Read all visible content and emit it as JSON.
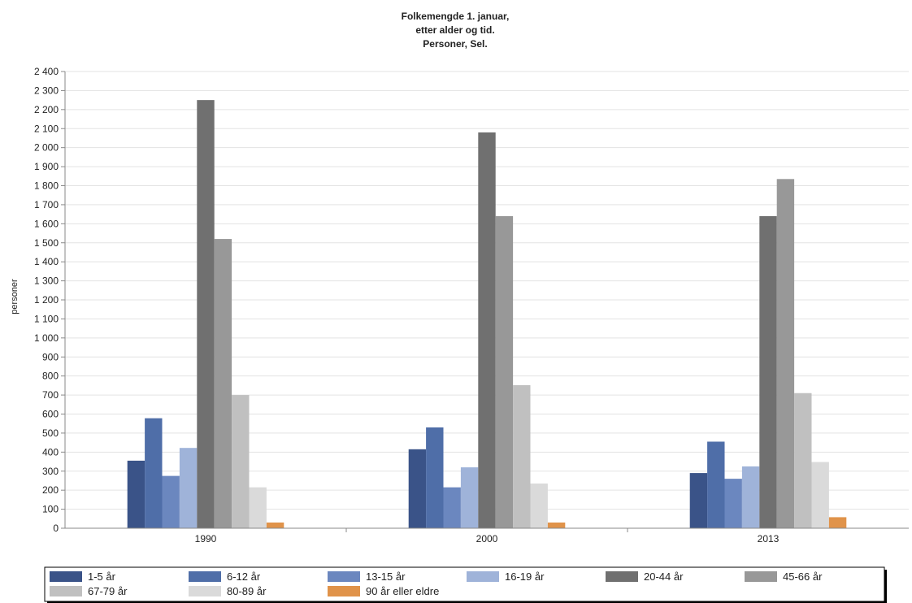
{
  "chart_data": {
    "type": "bar",
    "title": [
      "Folkemengde 1. januar,",
      "etter alder og tid.",
      "Personer, Sel."
    ],
    "ylabel": "personer",
    "xlabel": "",
    "ylim": [
      0,
      2400
    ],
    "ytick_step": 100,
    "ytick_labels": [
      "0",
      "100",
      "200",
      "300",
      "400",
      "500",
      "600",
      "700",
      "800",
      "900",
      "1 000",
      "1 100",
      "1 200",
      "1 300",
      "1 400",
      "1 500",
      "1 600",
      "1 700",
      "1 800",
      "1 900",
      "2 000",
      "2 100",
      "2 200",
      "2 300",
      "2 400"
    ],
    "grid": true,
    "legend_position": "bottom",
    "categories": [
      "1990",
      "2000",
      "2013"
    ],
    "series": [
      {
        "name": "1-5 år",
        "color": "#3a5388",
        "values": [
          355,
          415,
          290
        ]
      },
      {
        "name": "6-12 år",
        "color": "#4f6ea8",
        "values": [
          578,
          530,
          455
        ]
      },
      {
        "name": "13-15 år",
        "color": "#6b87bf",
        "values": [
          275,
          215,
          260
        ]
      },
      {
        "name": "16-19 år",
        "color": "#9fb3d9",
        "values": [
          422,
          320,
          325
        ]
      },
      {
        "name": "20-44 år",
        "color": "#707070",
        "values": [
          2250,
          2080,
          1640
        ]
      },
      {
        "name": "45-66 år",
        "color": "#989898",
        "values": [
          1520,
          1640,
          1835
        ]
      },
      {
        "name": "67-79 år",
        "color": "#c0c0c0",
        "values": [
          700,
          752,
          710
        ]
      },
      {
        "name": "80-89 år",
        "color": "#dadada",
        "values": [
          215,
          235,
          348
        ]
      },
      {
        "name": "90 år eller eldre",
        "color": "#e0934a",
        "values": [
          30,
          30,
          58
        ]
      }
    ]
  }
}
